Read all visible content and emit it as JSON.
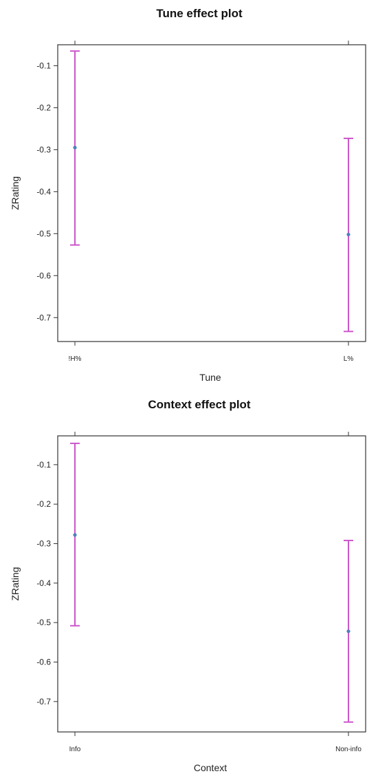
{
  "chart_data": [
    {
      "type": "errorbar",
      "title": "Tune effect plot",
      "xlabel": "Tune",
      "ylabel": "ZRating",
      "categories": [
        "!H%",
        "L%"
      ],
      "values": [
        -0.295,
        -0.502
      ],
      "lower": [
        -0.527,
        -0.733
      ],
      "upper": [
        -0.065,
        -0.273
      ],
      "yticks": [
        -0.1,
        -0.2,
        -0.3,
        -0.4,
        -0.5,
        -0.6,
        -0.7
      ],
      "ytick_labels": [
        "-0.1",
        "-0.2",
        "-0.3",
        "-0.4",
        "-0.5",
        "-0.6",
        "-0.7"
      ],
      "ylim": [
        -0.757,
        -0.05
      ],
      "grid": false,
      "colors": {
        "errorbar": "#cc55cc",
        "point": "#4f81bd",
        "axis": "#333333"
      }
    },
    {
      "type": "errorbar",
      "title": "Context effect plot",
      "xlabel": "Context",
      "ylabel": "ZRating",
      "categories": [
        "Info",
        "Non-info"
      ],
      "values": [
        -0.278,
        -0.522
      ],
      "lower": [
        -0.508,
        -0.752
      ],
      "upper": [
        -0.046,
        -0.292
      ],
      "yticks": [
        -0.1,
        -0.2,
        -0.3,
        -0.4,
        -0.5,
        -0.6,
        -0.7
      ],
      "ytick_labels": [
        "-0.1",
        "-0.2",
        "-0.3",
        "-0.4",
        "-0.5",
        "-0.6",
        "-0.7"
      ],
      "ylim": [
        -0.777,
        -0.027
      ],
      "grid": false,
      "colors": {
        "errorbar": "#cc55cc",
        "point": "#4f81bd",
        "axis": "#333333"
      }
    }
  ]
}
